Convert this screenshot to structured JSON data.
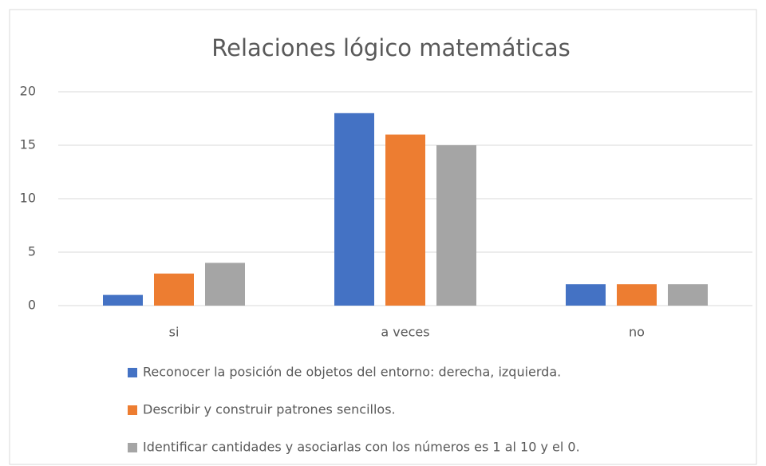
{
  "chart_data": {
    "type": "bar",
    "title": "Relaciones lógico matemáticas",
    "categories": [
      "si",
      "a veces",
      "no"
    ],
    "series": [
      {
        "name": "Reconocer la posición de objetos del entorno: derecha, izquierda.",
        "color": "#4472c4",
        "values": [
          1,
          18,
          2
        ]
      },
      {
        "name": "Describir y construir patrones sencillos.",
        "color": "#ed7d31",
        "values": [
          3,
          16,
          2
        ]
      },
      {
        "name": "Identificar cantidades y asociarlas con los números es 1 al 10 y el 0.",
        "color": "#a5a5a5",
        "values": [
          4,
          15,
          2
        ]
      }
    ],
    "ylim": [
      0,
      20
    ],
    "yticks": [
      0,
      5,
      10,
      15,
      20
    ],
    "grid": true,
    "legend": "bottom"
  }
}
